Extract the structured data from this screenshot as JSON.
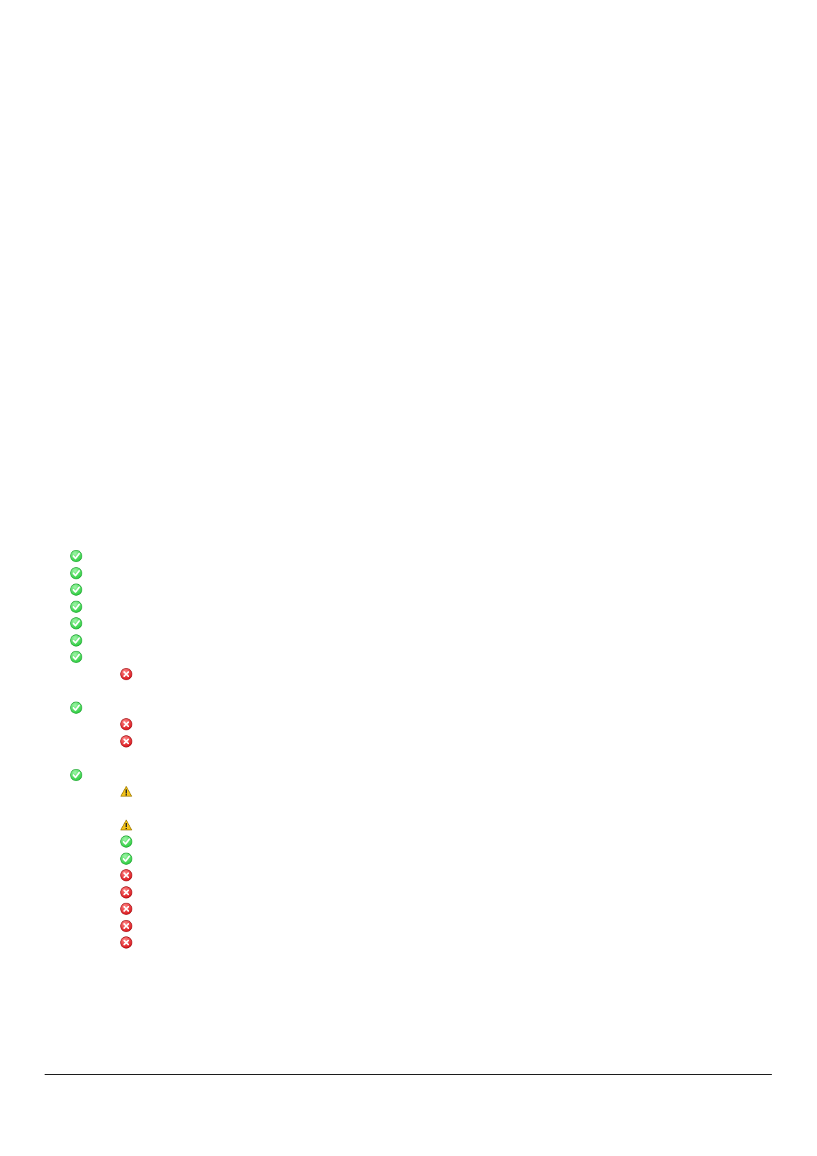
{
  "colors": {
    "pass": "#2ecc40",
    "fail": "#d9161c",
    "warning": "#f2c21b"
  },
  "checklist": [
    {
      "status": "pass",
      "level": 1,
      "icon": "check-circle-icon"
    },
    {
      "status": "pass",
      "level": 1,
      "icon": "check-circle-icon"
    },
    {
      "status": "pass",
      "level": 1,
      "icon": "check-circle-icon"
    },
    {
      "status": "pass",
      "level": 1,
      "icon": "check-circle-icon"
    },
    {
      "status": "pass",
      "level": 1,
      "icon": "check-circle-icon"
    },
    {
      "status": "pass",
      "level": 1,
      "icon": "check-circle-icon"
    },
    {
      "status": "pass",
      "level": 1,
      "icon": "check-circle-icon"
    },
    {
      "status": "fail",
      "level": 2,
      "icon": "x-circle-icon"
    },
    {
      "status": "pass",
      "level": 1,
      "icon": "check-circle-icon"
    },
    {
      "status": "fail",
      "level": 2,
      "icon": "x-circle-icon"
    },
    {
      "status": "fail",
      "level": 2,
      "icon": "x-circle-icon"
    },
    {
      "status": "pass",
      "level": 1,
      "icon": "check-circle-icon"
    },
    {
      "status": "warning",
      "level": 2,
      "icon": "warning-triangle-icon"
    },
    {
      "status": "warning",
      "level": 2,
      "icon": "warning-triangle-icon"
    },
    {
      "status": "pass",
      "level": 2,
      "icon": "check-circle-icon"
    },
    {
      "status": "pass",
      "level": 2,
      "icon": "check-circle-icon"
    },
    {
      "status": "fail",
      "level": 2,
      "icon": "x-circle-icon"
    },
    {
      "status": "fail",
      "level": 2,
      "icon": "x-circle-icon"
    },
    {
      "status": "fail",
      "level": 2,
      "icon": "x-circle-icon"
    },
    {
      "status": "fail",
      "level": 2,
      "icon": "x-circle-icon"
    },
    {
      "status": "fail",
      "level": 2,
      "icon": "x-circle-icon"
    }
  ]
}
